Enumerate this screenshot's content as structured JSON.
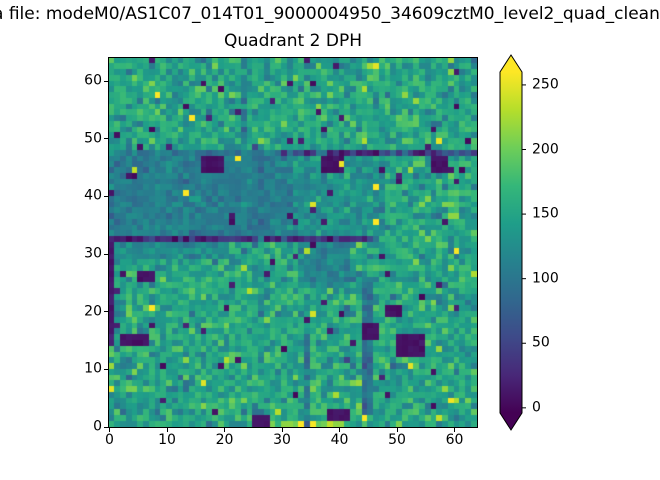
{
  "figure": {
    "suptitle": "a file: modeM0/AS1C07_014T01_9000004950_34609cztM0_level2_quad_clean",
    "background": "#ffffff"
  },
  "chart_data": {
    "type": "heatmap",
    "title": "Quadrant 2 DPH",
    "xlabel": "",
    "ylabel": "",
    "x_range": [
      0,
      64
    ],
    "y_range": [
      0,
      64
    ],
    "x_ticks": [
      0,
      10,
      20,
      30,
      40,
      50,
      60
    ],
    "y_ticks": [
      0,
      10,
      20,
      30,
      40,
      50,
      60
    ],
    "grid": {
      "cols": 64,
      "rows": 64
    },
    "colorbar": {
      "ticks": [
        0,
        50,
        100,
        150,
        200,
        250
      ],
      "vmin": -4,
      "vmax": 260,
      "extend": "both",
      "colormap": "viridis"
    },
    "colormap_stops": [
      "#440154",
      "#482878",
      "#3e4a89",
      "#31688e",
      "#26828e",
      "#1f9e89",
      "#35b779",
      "#6ece58",
      "#b5de2b",
      "#fde725"
    ],
    "pattern": {
      "seed": 1337,
      "base": {
        "mean": 150,
        "sd": 24
      },
      "regions": [
        {
          "x0": 0,
          "x1": 31,
          "y0": 32,
          "y1": 47,
          "mean": 110,
          "sd": 14
        },
        {
          "x0": 32,
          "x1": 47,
          "y0": 33,
          "y1": 46,
          "mean": 128,
          "sd": 16
        },
        {
          "x0": 33,
          "x1": 41,
          "y0": 24,
          "y1": 31,
          "mean": 118,
          "sd": 16
        },
        {
          "x0": 0,
          "x1": 20,
          "y0": 29,
          "y1": 31,
          "mean": 125,
          "sd": 15
        },
        {
          "x0": 59,
          "x1": 60,
          "y0": 35,
          "y1": 44,
          "mean": 185,
          "sd": 20
        },
        {
          "x0": 28,
          "x1": 40,
          "y0": 0,
          "y1": 0,
          "mean": 195,
          "sd": 35
        }
      ],
      "lines": [
        {
          "axis": "h",
          "pos": 32,
          "from": 0,
          "to": 45,
          "mean": 30,
          "sd": 18
        },
        {
          "axis": "h",
          "pos": 47,
          "from": 30,
          "to": 63,
          "mean": 45,
          "sd": 30
        },
        {
          "axis": "v",
          "pos": 0,
          "from": 14,
          "to": 31,
          "mean": 12,
          "sd": 8
        },
        {
          "axis": "v",
          "pos": 23,
          "from": 48,
          "to": 63,
          "mean": 115,
          "sd": 18
        },
        {
          "axis": "v",
          "pos": 26,
          "from": 32,
          "to": 47,
          "mean": 100,
          "sd": 16
        },
        {
          "axis": "v",
          "pos": 44,
          "from": 2,
          "to": 24,
          "mean": 88,
          "sd": 16
        },
        {
          "axis": "v",
          "pos": 45,
          "from": 2,
          "to": 24,
          "mean": 95,
          "sd": 16
        },
        {
          "axis": "v",
          "pos": 34,
          "from": 0,
          "to": 14,
          "mean": 105,
          "sd": 18
        }
      ],
      "dark_blobs": [
        {
          "x0": 16,
          "x1": 19,
          "y0": 44,
          "y1": 46
        },
        {
          "x0": 50,
          "x1": 54,
          "y0": 12,
          "y1": 15
        },
        {
          "x0": 48,
          "x1": 50,
          "y0": 19,
          "y1": 20
        },
        {
          "x0": 5,
          "x1": 7,
          "y0": 25,
          "y1": 26
        },
        {
          "x0": 37,
          "x1": 40,
          "y0": 44,
          "y1": 46
        },
        {
          "x0": 56,
          "x1": 58,
          "y0": 44,
          "y1": 46
        },
        {
          "x0": 38,
          "x1": 41,
          "y0": 1,
          "y1": 2
        },
        {
          "x0": 25,
          "x1": 27,
          "y0": 0,
          "y1": 1
        },
        {
          "x0": 2,
          "x1": 6,
          "y0": 14,
          "y1": 15
        },
        {
          "x0": 44,
          "x1": 46,
          "y0": 15,
          "y1": 17
        }
      ],
      "bright_specks": {
        "count": 16,
        "min": 225,
        "max": 268,
        "fixed": [
          [
            44,
            1
          ],
          [
            33,
            0
          ],
          [
            35,
            0
          ],
          [
            22,
            46
          ],
          [
            40,
            45
          ],
          [
            13,
            40
          ],
          [
            46,
            41
          ],
          [
            63,
            26
          ],
          [
            59,
            4
          ],
          [
            4,
            44
          ],
          [
            35,
            38
          ],
          [
            57,
            1
          ]
        ]
      },
      "dark_specks": {
        "count": 80,
        "min": 0,
        "max": 25
      }
    }
  }
}
